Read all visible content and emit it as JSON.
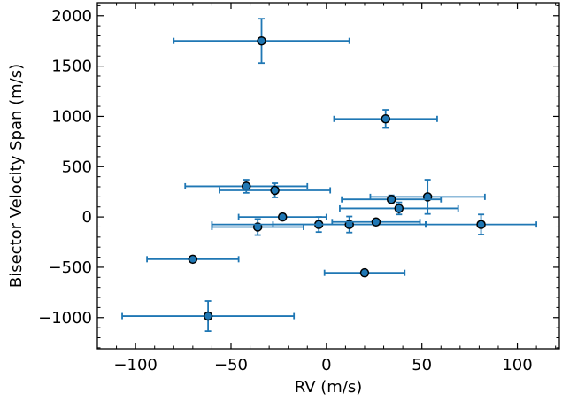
{
  "chart_data": {
    "type": "scatter",
    "xlabel": "RV (m/s)",
    "ylabel": "Bisector Velocity Span (m/s)",
    "xlim": [
      -120,
      122
    ],
    "ylim": [
      -1310,
      2130
    ],
    "x_ticks": [
      -100,
      -50,
      0,
      50,
      100
    ],
    "y_ticks": [
      -1000,
      -500,
      0,
      500,
      1000,
      1500,
      2000
    ],
    "x_tick_labels": [
      "−100",
      "−50",
      "0",
      "50",
      "100"
    ],
    "y_tick_labels": [
      "−1000",
      "−500",
      "0",
      "500",
      "1000",
      "1500",
      "2000"
    ],
    "grid": false,
    "legend": "none",
    "colors": {
      "errorbar": "#1f77b4",
      "marker_face": "#1f77b4",
      "marker_edge": "#000000"
    },
    "points": [
      {
        "x": -34,
        "y": 1750,
        "xerr": 46,
        "yerr": 220
      },
      {
        "x": 31,
        "y": 975,
        "xerr": 27,
        "yerr": 90
      },
      {
        "x": -42,
        "y": 305,
        "xerr": 32,
        "yerr": 65
      },
      {
        "x": -27,
        "y": 265,
        "xerr": 29,
        "yerr": 70
      },
      {
        "x": 53,
        "y": 200,
        "xerr": 30,
        "yerr": 170
      },
      {
        "x": 34,
        "y": 175,
        "xerr": 26,
        "yerr": 40
      },
      {
        "x": 38,
        "y": 85,
        "xerr": 31,
        "yerr": 60
      },
      {
        "x": -23,
        "y": 0,
        "xerr": 23,
        "yerr": 30
      },
      {
        "x": -36,
        "y": -100,
        "xerr": 24,
        "yerr": 80
      },
      {
        "x": -4,
        "y": -75,
        "xerr": 56,
        "yerr": 75
      },
      {
        "x": 12,
        "y": -75,
        "xerr": 40,
        "yerr": 80
      },
      {
        "x": 26,
        "y": -50,
        "xerr": 23,
        "yerr": 25
      },
      {
        "x": 81,
        "y": -75,
        "xerr": 29,
        "yerr": 100
      },
      {
        "x": -70,
        "y": -420,
        "xerr": 24,
        "yerr": 25
      },
      {
        "x": 20,
        "y": -555,
        "xerr": 21,
        "yerr": 25
      },
      {
        "x": -62,
        "y": -985,
        "xerr": 45,
        "yerr": 150
      }
    ]
  }
}
